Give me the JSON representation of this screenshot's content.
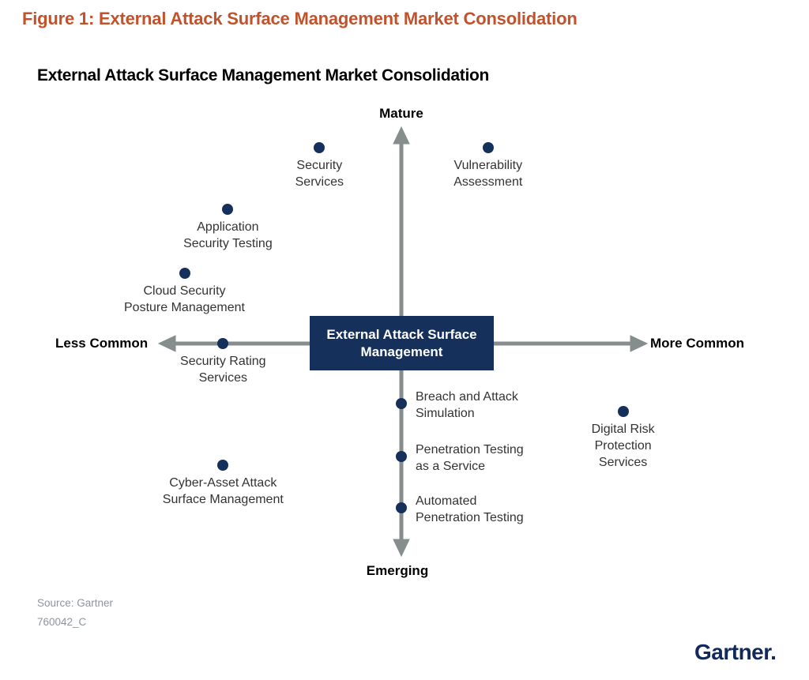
{
  "colors": {
    "accent_orange": "#C2522B",
    "navy": "#16305C",
    "axis_gray": "#868E8D",
    "label_text": "#333333",
    "muted_gray": "#8C959D",
    "logo_navy": "#12295B"
  },
  "figure": {
    "caption": "Figure 1: External Attack Surface Management Market Consolidation"
  },
  "chart_data": {
    "type": "scatter",
    "title": "External Attack Surface Management Market Consolidation",
    "axes": {
      "top": "Mature",
      "bottom": "Emerging",
      "left": "Less Common",
      "right": "More Common"
    },
    "axis_ranges": {
      "x": [
        -1,
        1
      ],
      "y": [
        -1,
        1
      ]
    },
    "grid": false,
    "center_box_label": "External Attack Surface Management",
    "points": [
      {
        "id": "security-services",
        "label": "Security Services",
        "lines": [
          "Security",
          "Services"
        ],
        "x": -0.34,
        "y": 0.92,
        "label_pos": "below"
      },
      {
        "id": "vulnerability-assessment",
        "label": "Vulnerability Assessment",
        "lines": [
          "Vulnerability",
          "Assessment"
        ],
        "x": 0.36,
        "y": 0.92,
        "label_pos": "below"
      },
      {
        "id": "application-security-testing",
        "label": "Application Security Testing",
        "lines": [
          "Application",
          "Security Testing"
        ],
        "x": -0.72,
        "y": 0.63,
        "label_pos": "below"
      },
      {
        "id": "cloud-security-posture-management",
        "label": "Cloud Security Posture Management",
        "lines": [
          "Cloud Security",
          "Posture Management"
        ],
        "x": -0.9,
        "y": 0.33,
        "label_pos": "below"
      },
      {
        "id": "security-rating-services",
        "label": "Security Rating Services",
        "lines": [
          "Security Rating",
          "Services"
        ],
        "x": -0.74,
        "y": 0.0,
        "label_pos": "below"
      },
      {
        "id": "cyber-asset-attack-surface-management",
        "label": "Cyber-Asset Attack Surface Management",
        "lines": [
          "Cyber-Asset Attack",
          "Surface Management"
        ],
        "x": -0.74,
        "y": -0.57,
        "label_pos": "below"
      },
      {
        "id": "breach-and-attack-simulation",
        "label": "Breach and Attack Simulation",
        "lines": [
          "Breach and Attack",
          "Simulation"
        ],
        "x": 0.0,
        "y": -0.28,
        "label_pos": "right"
      },
      {
        "id": "penetration-testing-as-a-service",
        "label": "Penetration Testing as a Service",
        "lines": [
          "Penetration Testing",
          "as a Service"
        ],
        "x": 0.0,
        "y": -0.53,
        "label_pos": "right"
      },
      {
        "id": "automated-penetration-testing",
        "label": "Automated Penetration Testing",
        "lines": [
          "Automated",
          "Penetration Testing"
        ],
        "x": 0.0,
        "y": -0.77,
        "label_pos": "right"
      },
      {
        "id": "digital-risk-protection-services",
        "label": "Digital Risk Protection Services",
        "lines": [
          "Digital Risk",
          "Protection",
          "Services"
        ],
        "x": 0.92,
        "y": -0.32,
        "label_pos": "below"
      }
    ]
  },
  "footer": {
    "source": "Source: Gartner",
    "doc_id": "760042_C",
    "logo": "Gartner",
    "logo_mark": "."
  }
}
